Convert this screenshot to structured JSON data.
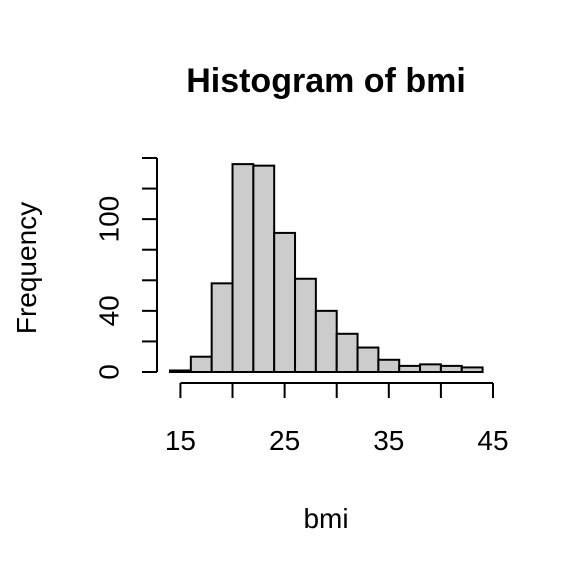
{
  "chart_data": {
    "type": "histogram",
    "title": "Histogram of bmi",
    "xlabel": "bmi",
    "ylabel": "Frequency",
    "bin_edges": [
      14,
      16,
      18,
      20,
      22,
      24,
      26,
      28,
      30,
      32,
      34,
      36,
      38,
      40,
      42,
      44
    ],
    "values": [
      1,
      10,
      58,
      136,
      135,
      91,
      61,
      40,
      25,
      16,
      8,
      4,
      5,
      4,
      3
    ],
    "x_ticks": [
      15,
      25,
      35,
      45
    ],
    "y_ticks": [
      0,
      40,
      100
    ],
    "y_minor_ticks": [
      0,
      20,
      40,
      60,
      80,
      100,
      120,
      140
    ],
    "xlim": [
      14,
      45
    ],
    "ylim": [
      0,
      140
    ],
    "grid": false,
    "bar_fill": "#cccccc",
    "bar_stroke": "#000000"
  }
}
